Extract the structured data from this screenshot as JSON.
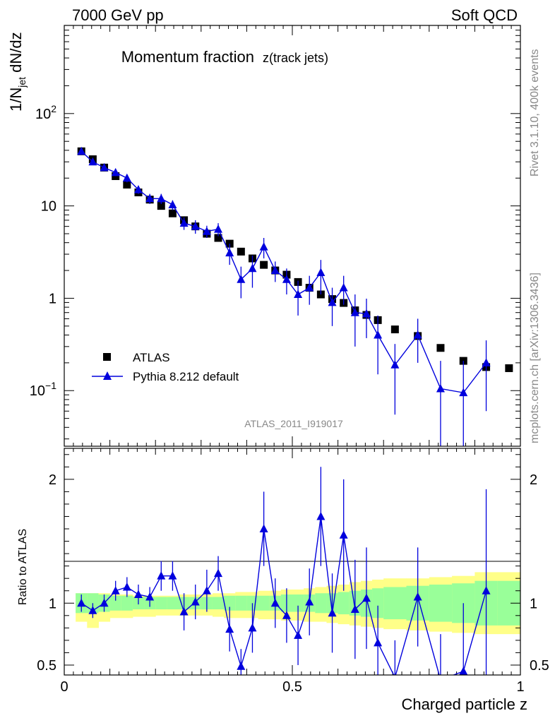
{
  "header": {
    "left_label": "7000 GeV pp",
    "right_label": "Soft QCD",
    "side_top": "Rivet 3.1.10,  400k events",
    "side_bottom": "mcplots.cern.ch [arXiv:1306.3436]"
  },
  "chart_data": [
    {
      "type": "scatter",
      "panel": "main",
      "title": "Momentum fraction",
      "title_suffix": "z(track jets)",
      "ylabel": "1/N_jet dN/dz",
      "yscale": "log",
      "ylim": [
        0.025,
        900
      ],
      "xlim": [
        0,
        1
      ],
      "ytick_labels": [
        "10^-1",
        "1",
        "10",
        "10^2"
      ],
      "analysis_label": "ATLAS_2011_I919017",
      "legend": [
        "ATLAS",
        "Pythia 8.212 default"
      ],
      "legend_position": "bottom-left",
      "series": [
        {
          "name": "ATLAS",
          "marker": "square",
          "color": "#000000",
          "x": [
            0.0375,
            0.0625,
            0.0875,
            0.1125,
            0.1375,
            0.1625,
            0.1875,
            0.2125,
            0.2375,
            0.2625,
            0.2875,
            0.3125,
            0.3375,
            0.3625,
            0.3875,
            0.4125,
            0.4375,
            0.4625,
            0.4875,
            0.5125,
            0.5375,
            0.5625,
            0.5875,
            0.6125,
            0.6375,
            0.6625,
            0.6875,
            0.725,
            0.775,
            0.825,
            0.875,
            0.925,
            0.975
          ],
          "y": [
            39,
            32,
            26,
            21,
            17,
            14,
            11.7,
            10,
            8.3,
            7.0,
            6.0,
            5.0,
            4.5,
            3.9,
            3.2,
            2.7,
            2.3,
            2.0,
            1.8,
            1.5,
            1.3,
            1.1,
            0.98,
            0.89,
            0.74,
            0.66,
            0.58,
            0.46,
            0.39,
            0.29,
            0.21,
            0.18,
            0.175
          ]
        },
        {
          "name": "Pythia 8.212 default",
          "marker": "triangle",
          "color": "#0000dd",
          "x": [
            0.0375,
            0.0625,
            0.0875,
            0.1125,
            0.1375,
            0.1625,
            0.1875,
            0.2125,
            0.2375,
            0.2625,
            0.2875,
            0.3125,
            0.3375,
            0.3625,
            0.3875,
            0.4125,
            0.4375,
            0.4625,
            0.4875,
            0.5125,
            0.5375,
            0.5625,
            0.5875,
            0.6125,
            0.6375,
            0.6625,
            0.6875,
            0.725,
            0.775,
            0.825,
            0.875,
            0.925
          ],
          "y": [
            39,
            30,
            26,
            23,
            20,
            15,
            12,
            12,
            10.3,
            6.5,
            6.0,
            5.3,
            5.6,
            3.1,
            1.6,
            2.1,
            3.6,
            2.0,
            1.6,
            1.1,
            1.3,
            1.9,
            0.9,
            1.3,
            0.7,
            0.68,
            0.4,
            0.19,
            0.4,
            0.105,
            0.095,
            0.2
          ],
          "y_low": [
            36,
            28,
            24,
            21,
            18,
            13.5,
            10.5,
            10.5,
            9.0,
            5.5,
            5.0,
            4.5,
            4.7,
            2.3,
            1.0,
            1.3,
            2.7,
            1.5,
            1.1,
            0.65,
            0.85,
            1.1,
            0.5,
            0.85,
            0.3,
            0.37,
            0.15,
            0.055,
            0.2,
            0.015,
            0.015,
            0.06
          ],
          "y_high": [
            42,
            32,
            28,
            25,
            22,
            16.5,
            13.5,
            13.5,
            11.5,
            7.5,
            7.0,
            6.1,
            6.5,
            3.9,
            2.2,
            2.9,
            4.5,
            2.5,
            2.1,
            1.55,
            1.75,
            2.6,
            1.3,
            1.75,
            1.1,
            0.99,
            0.65,
            0.32,
            0.6,
            0.21,
            0.21,
            0.35
          ]
        }
      ]
    },
    {
      "type": "scatter",
      "panel": "ratio",
      "ylabel": "Ratio to ATLAS",
      "xlabel": "Charged particle z",
      "ylim": [
        0.42,
        2.25
      ],
      "xlim": [
        0,
        1
      ],
      "ytick_labels": [
        "0.5",
        "1",
        "2"
      ],
      "xtick_labels": [
        "0",
        "0.5",
        "1"
      ],
      "band_edges": [
        0.025,
        0.05,
        0.075,
        0.1,
        0.125,
        0.15,
        0.175,
        0.2,
        0.225,
        0.25,
        0.275,
        0.3,
        0.325,
        0.35,
        0.375,
        0.4,
        0.425,
        0.45,
        0.475,
        0.5,
        0.525,
        0.55,
        0.575,
        0.6,
        0.625,
        0.65,
        0.675,
        0.7,
        0.75,
        0.8,
        0.85,
        0.9,
        0.95,
        1.0
      ],
      "stat_band": [
        [
          0.92,
          1.08
        ],
        [
          0.92,
          1.08
        ],
        [
          0.93,
          1.07
        ],
        [
          0.94,
          1.06
        ],
        [
          0.94,
          1.06
        ],
        [
          0.95,
          1.05
        ],
        [
          0.95,
          1.05
        ],
        [
          0.95,
          1.05
        ],
        [
          0.95,
          1.05
        ],
        [
          0.95,
          1.05
        ],
        [
          0.95,
          1.05
        ],
        [
          0.95,
          1.05
        ],
        [
          0.95,
          1.05
        ],
        [
          0.94,
          1.06
        ],
        [
          0.94,
          1.06
        ],
        [
          0.94,
          1.06
        ],
        [
          0.94,
          1.06
        ],
        [
          0.94,
          1.06
        ],
        [
          0.93,
          1.07
        ],
        [
          0.93,
          1.07
        ],
        [
          0.93,
          1.07
        ],
        [
          0.92,
          1.08
        ],
        [
          0.92,
          1.08
        ],
        [
          0.91,
          1.09
        ],
        [
          0.9,
          1.1
        ],
        [
          0.89,
          1.11
        ],
        [
          0.88,
          1.12
        ],
        [
          0.87,
          1.13
        ],
        [
          0.86,
          1.14
        ],
        [
          0.85,
          1.15
        ],
        [
          0.84,
          1.16
        ],
        [
          0.82,
          1.18
        ],
        [
          0.82,
          1.18
        ]
      ],
      "total_band": [
        [
          0.85,
          1.08
        ],
        [
          0.8,
          1.08
        ],
        [
          0.85,
          1.08
        ],
        [
          0.88,
          1.07
        ],
        [
          0.88,
          1.07
        ],
        [
          0.89,
          1.06
        ],
        [
          0.89,
          1.06
        ],
        [
          0.9,
          1.06
        ],
        [
          0.9,
          1.06
        ],
        [
          0.9,
          1.07
        ],
        [
          0.9,
          1.07
        ],
        [
          0.9,
          1.07
        ],
        [
          0.89,
          1.08
        ],
        [
          0.88,
          1.08
        ],
        [
          0.88,
          1.09
        ],
        [
          0.88,
          1.09
        ],
        [
          0.87,
          1.1
        ],
        [
          0.87,
          1.1
        ],
        [
          0.86,
          1.11
        ],
        [
          0.86,
          1.11
        ],
        [
          0.85,
          1.12
        ],
        [
          0.85,
          1.13
        ],
        [
          0.84,
          1.14
        ],
        [
          0.83,
          1.15
        ],
        [
          0.82,
          1.17
        ],
        [
          0.81,
          1.18
        ],
        [
          0.8,
          1.19
        ],
        [
          0.79,
          1.2
        ],
        [
          0.78,
          1.2
        ],
        [
          0.77,
          1.21
        ],
        [
          0.76,
          1.22
        ],
        [
          0.75,
          1.25
        ],
        [
          0.75,
          1.25
        ]
      ],
      "series": [
        {
          "name": "Pythia 8.212 default",
          "marker": "triangle",
          "color": "#0000dd",
          "x": [
            0.0375,
            0.0625,
            0.0875,
            0.1125,
            0.1375,
            0.1625,
            0.1875,
            0.2125,
            0.2375,
            0.2625,
            0.2875,
            0.3125,
            0.3375,
            0.3625,
            0.3875,
            0.4125,
            0.4375,
            0.4625,
            0.4875,
            0.5125,
            0.5375,
            0.5625,
            0.5875,
            0.6125,
            0.6375,
            0.6625,
            0.6875,
            0.725,
            0.775,
            0.825,
            0.875,
            0.925
          ],
          "y": [
            1.0,
            0.94,
            1.0,
            1.1,
            1.13,
            1.07,
            1.05,
            1.22,
            1.22,
            0.93,
            1.01,
            1.1,
            1.24,
            0.79,
            0.49,
            0.8,
            1.6,
            1.0,
            0.9,
            0.74,
            1.01,
            1.7,
            0.92,
            1.55,
            0.95,
            1.04,
            0.68,
            0.4,
            1.05,
            0.38,
            0.45,
            1.1
          ],
          "y_low": [
            0.93,
            0.88,
            0.93,
            1.02,
            1.05,
            0.99,
            0.97,
            1.1,
            1.1,
            0.78,
            0.87,
            0.93,
            1.1,
            0.61,
            0.35,
            0.6,
            1.3,
            0.8,
            0.68,
            0.5,
            0.74,
            1.3,
            0.6,
            1.1,
            0.55,
            0.63,
            0.38,
            0.15,
            0.65,
            0.1,
            0.15,
            0.4
          ],
          "y_high": [
            1.07,
            1.0,
            1.07,
            1.18,
            1.21,
            1.15,
            1.13,
            1.34,
            1.34,
            1.08,
            1.15,
            1.27,
            1.38,
            0.97,
            0.63,
            1.0,
            1.9,
            1.2,
            1.12,
            0.98,
            1.28,
            2.1,
            1.24,
            2.0,
            1.35,
            1.45,
            0.98,
            0.7,
            1.45,
            0.75,
            1.0,
            1.92
          ]
        }
      ]
    }
  ]
}
